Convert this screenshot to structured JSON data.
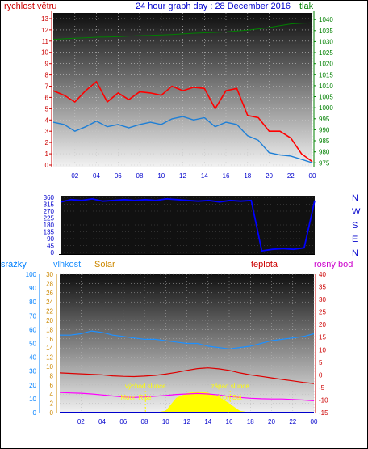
{
  "header": {
    "left_label": "rychlost větru",
    "title": "24 hour graph day : 28 December 2016",
    "right_label": "tlak"
  },
  "legend_bottom": {
    "rain": "srážky",
    "humidity": "vlhkost",
    "solar": "Solar",
    "temperature": "teplota",
    "dewpoint": "rosný bod"
  },
  "annotations": {
    "sunrise": "východ slunce",
    "sunset": "západ slunce",
    "moonrise": "Moon Rise",
    "moonset": "Moon Set"
  },
  "colors": {
    "gust": "#ff0000",
    "wind": "#1e7fd6",
    "pressure": "#008000",
    "direction": "#0000ff",
    "humidity": "#1e90ff",
    "temperature": "#dd0000",
    "dewpoint": "#ff00ff",
    "solar": "#ffff00",
    "rain_axis": "#0080ff",
    "solar_axis": "#cc8800",
    "annotation": "#ffff00",
    "label_red": "#cc0000",
    "label_blue": "#0000cc"
  },
  "chart_data": [
    {
      "type": "line",
      "name": "wind",
      "x_ticks": [
        "02",
        "04",
        "06",
        "08",
        "10",
        "12",
        "14",
        "16",
        "18",
        "20",
        "22",
        "00"
      ],
      "left_axis": {
        "label": "rychlost větru",
        "ticks": [
          0,
          1,
          2,
          3,
          4,
          5,
          6,
          7,
          8,
          9,
          10,
          11,
          12,
          13
        ],
        "ylim": [
          0,
          13.5
        ]
      },
      "right_axis": {
        "label": "tlak",
        "ticks": [
          975,
          980,
          985,
          990,
          995,
          1000,
          1005,
          1010,
          1015,
          1020,
          1025,
          1030,
          1035,
          1040
        ],
        "ylim": [
          974,
          1043
        ]
      },
      "hours": [
        0,
        1,
        2,
        3,
        4,
        5,
        6,
        7,
        8,
        9,
        10,
        11,
        12,
        13,
        14,
        15,
        16,
        17,
        18,
        19,
        20,
        21,
        22,
        23,
        24
      ],
      "gust": [
        6.6,
        6.2,
        5.6,
        6.6,
        7.4,
        5.6,
        6.4,
        5.8,
        6.5,
        6.4,
        6.2,
        7.0,
        6.6,
        6.9,
        6.8,
        5.0,
        6.6,
        6.8,
        4.4,
        4.2,
        3.0,
        3.0,
        2.4,
        1.0,
        0.3
      ],
      "wind": [
        3.8,
        3.6,
        3.0,
        3.4,
        3.9,
        3.4,
        3.6,
        3.3,
        3.6,
        3.8,
        3.6,
        4.1,
        4.3,
        4.0,
        4.2,
        3.4,
        3.8,
        3.6,
        2.6,
        2.2,
        1.1,
        0.9,
        0.8,
        0.5,
        0.2
      ],
      "pressure": [
        1031.0,
        1031.3,
        1031.5,
        1031.7,
        1032.0,
        1032.1,
        1032.2,
        1032.5,
        1032.7,
        1032.8,
        1033.0,
        1033.2,
        1033.5,
        1033.8,
        1034.0,
        1034.2,
        1034.4,
        1034.8,
        1035.2,
        1035.8,
        1036.4,
        1037.2,
        1038.0,
        1038.3,
        1038.5
      ]
    },
    {
      "type": "scatter",
      "name": "wind_direction",
      "x_ticks": [
        "02",
        "04",
        "06",
        "08",
        "10",
        "12",
        "14",
        "16",
        "18",
        "20",
        "22",
        "00"
      ],
      "left_axis": {
        "ticks": [
          0,
          45,
          90,
          135,
          180,
          225,
          270,
          315,
          360
        ],
        "ylim": [
          0,
          360
        ]
      },
      "right_labels": [
        "N",
        "W",
        "S",
        "E",
        "N"
      ],
      "hours": [
        0,
        1,
        2,
        3,
        4,
        5,
        6,
        7,
        8,
        9,
        10,
        11,
        12,
        13,
        14,
        15,
        16,
        17,
        18,
        19,
        20,
        21,
        22,
        23,
        24
      ],
      "degrees": [
        330,
        345,
        340,
        350,
        335,
        340,
        345,
        340,
        345,
        340,
        350,
        345,
        340,
        335,
        340,
        330,
        340,
        335,
        340,
        10,
        20,
        25,
        20,
        30,
        340
      ]
    },
    {
      "type": "line",
      "name": "weather",
      "x_ticks": [
        "02",
        "04",
        "06",
        "08",
        "10",
        "12",
        "14",
        "16",
        "18",
        "20",
        "22",
        "00"
      ],
      "rain_axis": {
        "label": "srážky",
        "ticks": [
          0,
          10,
          20,
          30,
          40,
          50,
          60,
          70,
          80,
          90,
          100
        ],
        "ylim": [
          0,
          100
        ]
      },
      "solar_axis": {
        "label": "Solar",
        "ticks": [
          0,
          2,
          4,
          6,
          8,
          10,
          12,
          14,
          16,
          18,
          20,
          22,
          24,
          26,
          28,
          30
        ],
        "ylim": [
          0,
          30
        ]
      },
      "temp_axis": {
        "label": "teplota",
        "ticks": [
          -15,
          -10,
          -5,
          0,
          5,
          10,
          15,
          20,
          25,
          30,
          35,
          40
        ],
        "ylim": [
          -15,
          40
        ]
      },
      "hours": [
        0,
        1,
        2,
        3,
        4,
        5,
        6,
        7,
        8,
        9,
        10,
        11,
        12,
        13,
        14,
        15,
        16,
        17,
        18,
        19,
        20,
        21,
        22,
        23,
        24
      ],
      "humidity": [
        56,
        56,
        57,
        59,
        58,
        56,
        55,
        54,
        53,
        53,
        52,
        51,
        50,
        50,
        48,
        47,
        46,
        47,
        48,
        50,
        52,
        53,
        54,
        55,
        57
      ],
      "temperature": [
        0.8,
        0.6,
        0.4,
        0.2,
        0.0,
        -0.4,
        -0.6,
        -0.7,
        -0.5,
        -0.2,
        0.3,
        1.0,
        1.8,
        2.5,
        2.8,
        2.4,
        1.8,
        0.8,
        0.0,
        -0.6,
        -1.2,
        -1.8,
        -2.4,
        -3.0,
        -3.5
      ],
      "dewpoint": [
        -7.0,
        -7.2,
        -7.3,
        -7.6,
        -8.0,
        -8.4,
        -8.8,
        -9.0,
        -8.8,
        -8.5,
        -8.2,
        -7.8,
        -7.6,
        -7.4,
        -7.6,
        -8.0,
        -8.6,
        -9.0,
        -9.3,
        -9.5,
        -9.6,
        -9.6,
        -9.8,
        -10.0,
        -10.3
      ],
      "solar": [
        0,
        0,
        0,
        0,
        0,
        0,
        0,
        0,
        0,
        0,
        0.4,
        3.2,
        4.2,
        4.6,
        4.3,
        3.5,
        2.0,
        0.4,
        0,
        0,
        0,
        0,
        0,
        0,
        0
      ],
      "rain": [
        0,
        0,
        0,
        0,
        0,
        0,
        0,
        0,
        0,
        0,
        0,
        0,
        0,
        0,
        0,
        0,
        0,
        0,
        0,
        0,
        0,
        0,
        0,
        0,
        0
      ],
      "events": [
        {
          "name": "sunrise",
          "hour": 8.1
        },
        {
          "name": "sunset",
          "hour": 16.1
        },
        {
          "name": "moonrise",
          "hour": 7.2
        },
        {
          "name": "moonset",
          "hour": 15.9
        }
      ]
    }
  ]
}
